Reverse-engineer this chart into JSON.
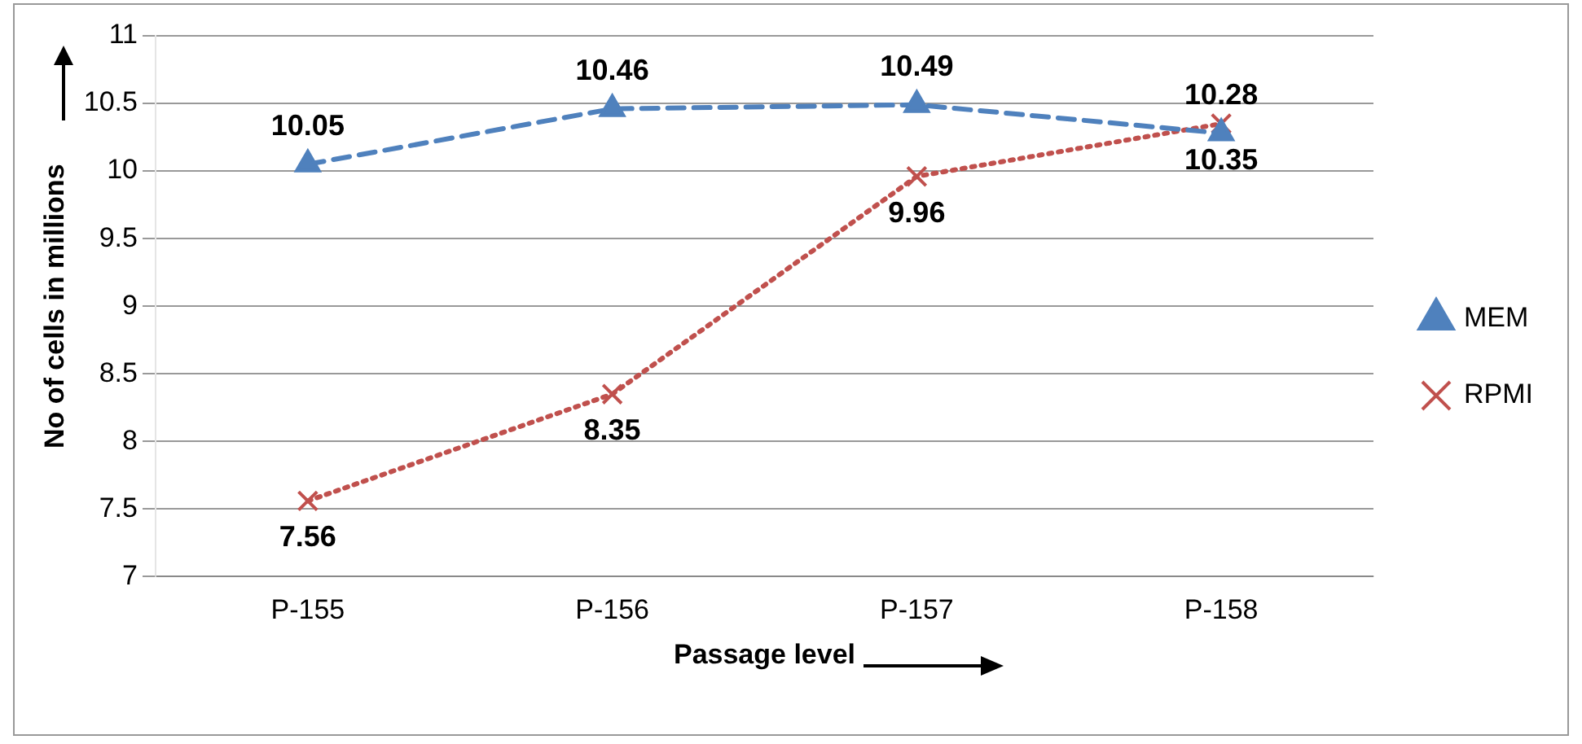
{
  "chart_data": {
    "type": "line",
    "xlabel": "Passage level",
    "ylabel": "No of cells in millions",
    "categories": [
      "P-155",
      "P-156",
      "P-157",
      "P-158"
    ],
    "series": [
      {
        "name": "MEM",
        "color": "#4f81bd",
        "values": [
          10.05,
          10.46,
          10.49,
          10.28
        ],
        "marker": "triangle",
        "line_style": "dashed"
      },
      {
        "name": "RPMI",
        "color": "#c0504d",
        "values": [
          7.56,
          8.35,
          9.96,
          10.35
        ],
        "marker": "cross",
        "line_style": "dotted"
      }
    ],
    "ylim": [
      7,
      11
    ],
    "yticks": [
      7,
      7.5,
      8,
      8.5,
      9,
      9.5,
      10,
      10.5,
      11
    ],
    "grid": "y",
    "legend": "right",
    "data_labels": true
  }
}
